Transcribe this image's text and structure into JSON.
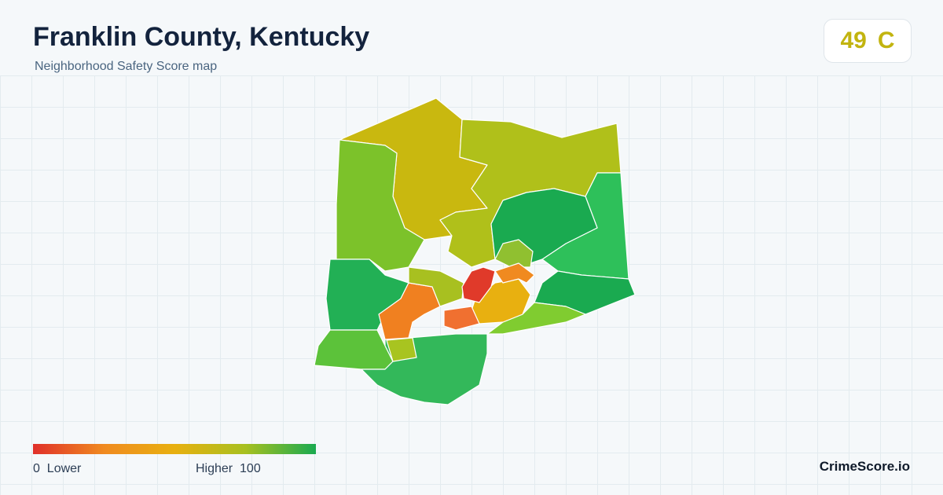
{
  "header": {
    "title": "Franklin County, Kentucky",
    "subtitle": "Neighborhood Safety Score map"
  },
  "score": {
    "value": 49,
    "grade": "C"
  },
  "legend": {
    "min": 0,
    "min_label": "Lower",
    "max_label": "Higher",
    "max": 100
  },
  "brand": "CrimeScore.io"
}
